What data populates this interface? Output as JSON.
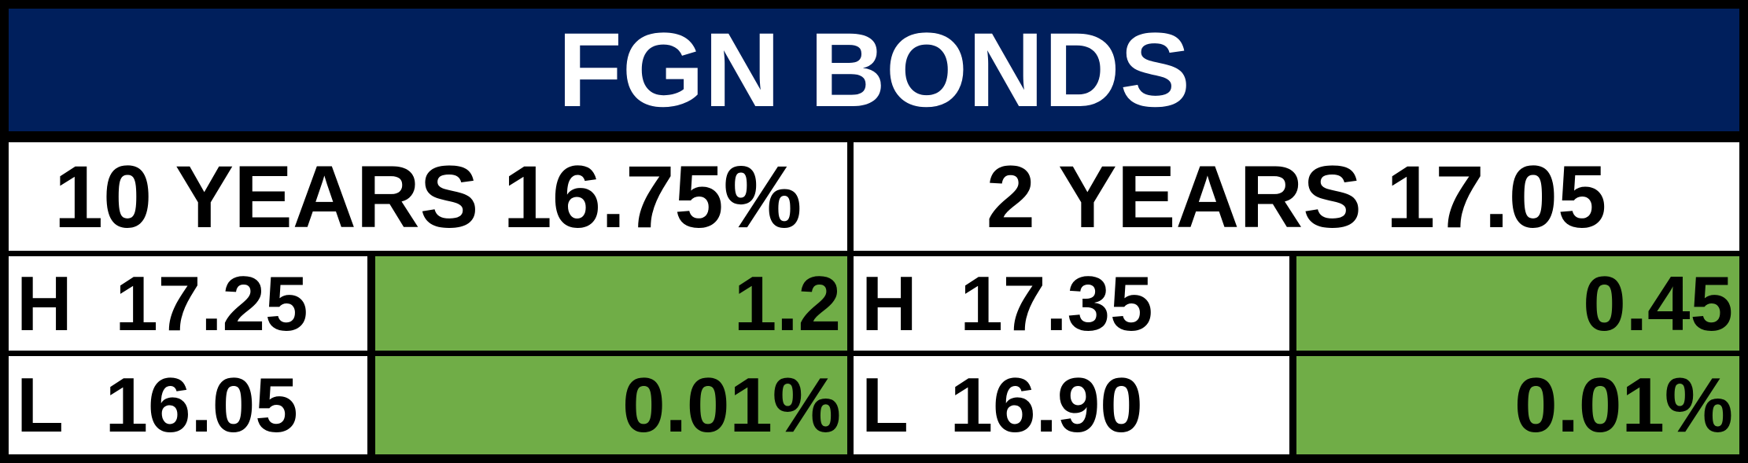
{
  "header": {
    "title": "FGN BONDS"
  },
  "table": {
    "headers": [
      "10 YEARS 16.75%",
      "2 YEARS 17.05"
    ],
    "rows": [
      [
        "H  17.25",
        "1.2",
        "H  17.35",
        "0.45"
      ],
      [
        "L  16.05",
        "0.01%",
        "L  16.90",
        "0.01%"
      ]
    ]
  }
}
